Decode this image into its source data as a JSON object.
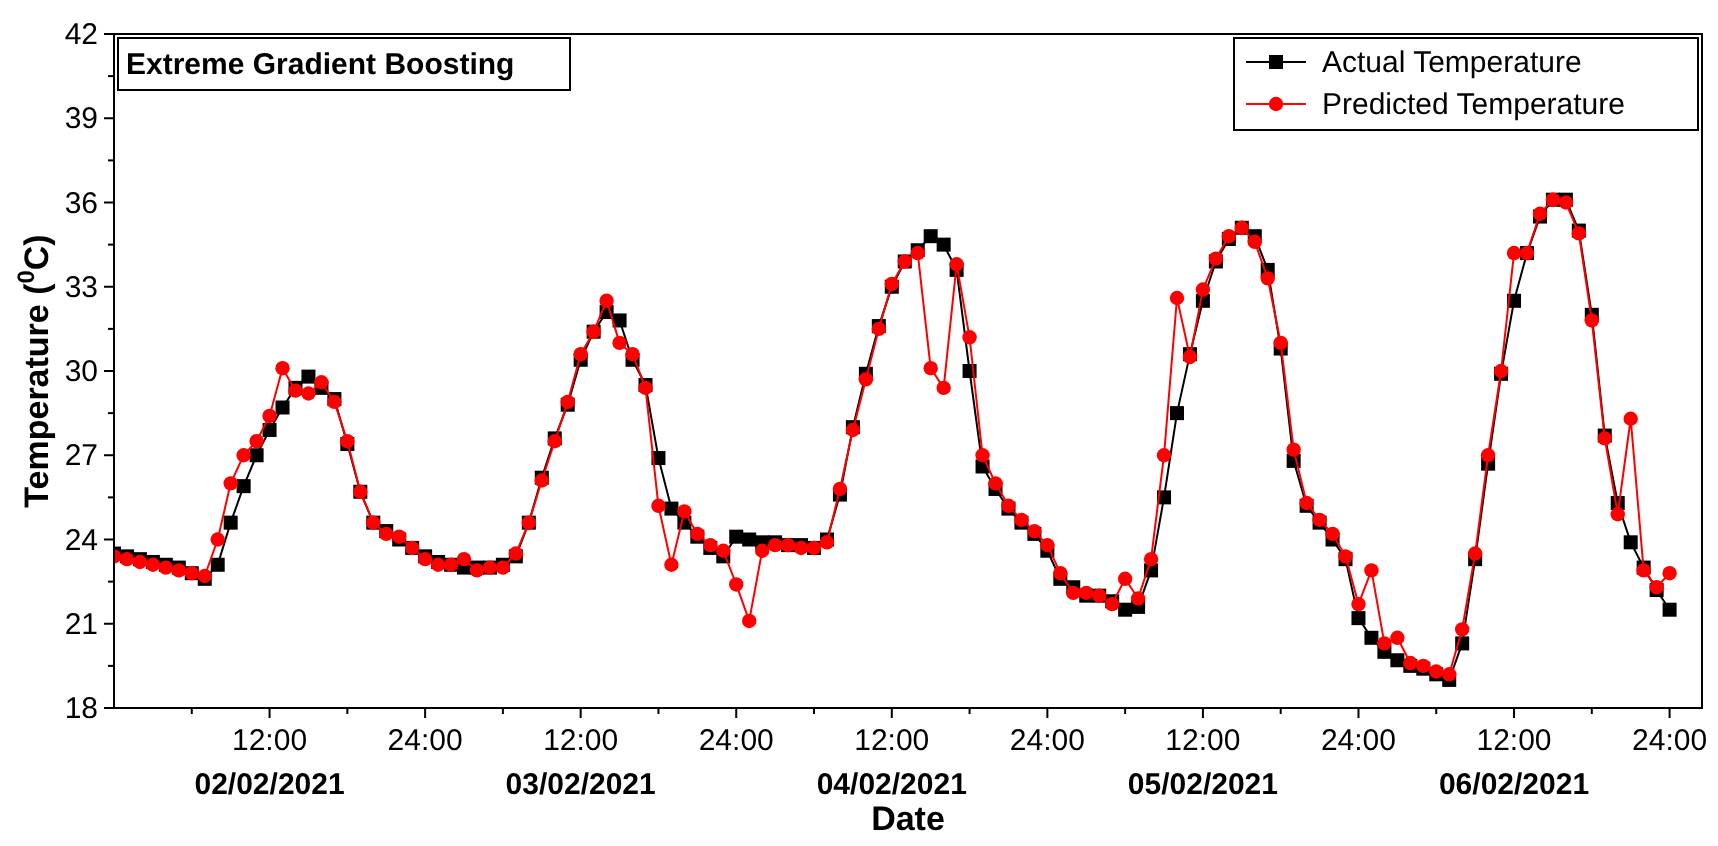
{
  "chart_data": {
    "type": "line",
    "title": "Extreme Gradient Boosting",
    "xlabel": "Date",
    "ylabel": "Temperature ($^{0}$C)",
    "x": [
      "2021-02-02T00:00",
      "2021-02-02T01:00",
      "2021-02-02T02:00",
      "2021-02-02T03:00",
      "2021-02-02T04:00",
      "2021-02-02T05:00",
      "2021-02-02T06:00",
      "2021-02-02T07:00",
      "2021-02-02T08:00",
      "2021-02-02T09:00",
      "2021-02-02T10:00",
      "2021-02-02T11:00",
      "2021-02-02T12:00",
      "2021-02-02T13:00",
      "2021-02-02T14:00",
      "2021-02-02T15:00",
      "2021-02-02T16:00",
      "2021-02-02T17:00",
      "2021-02-02T18:00",
      "2021-02-02T19:00",
      "2021-02-02T20:00",
      "2021-02-02T21:00",
      "2021-02-02T22:00",
      "2021-02-02T23:00",
      "2021-02-03T00:00",
      "2021-02-03T01:00",
      "2021-02-03T02:00",
      "2021-02-03T03:00",
      "2021-02-03T04:00",
      "2021-02-03T05:00",
      "2021-02-03T06:00",
      "2021-02-03T07:00",
      "2021-02-03T08:00",
      "2021-02-03T09:00",
      "2021-02-03T10:00",
      "2021-02-03T11:00",
      "2021-02-03T12:00",
      "2021-02-03T13:00",
      "2021-02-03T14:00",
      "2021-02-03T15:00",
      "2021-02-03T16:00",
      "2021-02-03T17:00",
      "2021-02-03T18:00",
      "2021-02-03T19:00",
      "2021-02-03T20:00",
      "2021-02-03T21:00",
      "2021-02-03T22:00",
      "2021-02-03T23:00",
      "2021-02-04T00:00",
      "2021-02-04T01:00",
      "2021-02-04T02:00",
      "2021-02-04T03:00",
      "2021-02-04T04:00",
      "2021-02-04T05:00",
      "2021-02-04T06:00",
      "2021-02-04T07:00",
      "2021-02-04T08:00",
      "2021-02-04T09:00",
      "2021-02-04T10:00",
      "2021-02-04T11:00",
      "2021-02-04T12:00",
      "2021-02-04T13:00",
      "2021-02-04T14:00",
      "2021-02-04T15:00",
      "2021-02-04T16:00",
      "2021-02-04T17:00",
      "2021-02-04T18:00",
      "2021-02-04T19:00",
      "2021-02-04T20:00",
      "2021-02-04T21:00",
      "2021-02-04T22:00",
      "2021-02-04T23:00",
      "2021-02-05T00:00",
      "2021-02-05T01:00",
      "2021-02-05T02:00",
      "2021-02-05T03:00",
      "2021-02-05T04:00",
      "2021-02-05T05:00",
      "2021-02-05T06:00",
      "2021-02-05T07:00",
      "2021-02-05T08:00",
      "2021-02-05T09:00",
      "2021-02-05T10:00",
      "2021-02-05T11:00",
      "2021-02-05T12:00",
      "2021-02-05T13:00",
      "2021-02-05T14:00",
      "2021-02-05T15:00",
      "2021-02-05T16:00",
      "2021-02-05T17:00",
      "2021-02-05T18:00",
      "2021-02-05T19:00",
      "2021-02-05T20:00",
      "2021-02-05T21:00",
      "2021-02-05T22:00",
      "2021-02-05T23:00",
      "2021-02-06T00:00",
      "2021-02-06T01:00",
      "2021-02-06T02:00",
      "2021-02-06T03:00",
      "2021-02-06T04:00",
      "2021-02-06T05:00",
      "2021-02-06T06:00",
      "2021-02-06T07:00",
      "2021-02-06T08:00",
      "2021-02-06T09:00",
      "2021-02-06T10:00",
      "2021-02-06T11:00",
      "2021-02-06T12:00",
      "2021-02-06T13:00",
      "2021-02-06T14:00",
      "2021-02-06T15:00",
      "2021-02-06T16:00",
      "2021-02-06T17:00",
      "2021-02-06T18:00",
      "2021-02-06T19:00",
      "2021-02-06T20:00",
      "2021-02-06T21:00",
      "2021-02-06T22:00",
      "2021-02-06T23:00",
      "2021-02-07T00:00"
    ],
    "series": [
      {
        "name": "Actual Temperature",
        "color": "#000000",
        "marker": "square",
        "values": [
          23.5,
          23.4,
          23.3,
          23.2,
          23.1,
          23.0,
          22.8,
          22.6,
          23.1,
          24.6,
          25.9,
          27.0,
          27.9,
          28.7,
          29.4,
          29.8,
          29.4,
          29.0,
          27.4,
          25.7,
          24.6,
          24.3,
          24.0,
          23.7,
          23.4,
          23.2,
          23.1,
          23.0,
          23.0,
          23.0,
          23.1,
          23.4,
          24.6,
          26.2,
          27.6,
          28.8,
          30.4,
          31.4,
          32.1,
          31.8,
          30.4,
          29.5,
          26.9,
          25.1,
          24.6,
          24.1,
          23.7,
          23.4,
          24.1,
          24.0,
          23.9,
          23.9,
          23.8,
          23.8,
          23.7,
          24.0,
          25.6,
          28.0,
          29.9,
          31.6,
          33.0,
          33.9,
          34.3,
          34.8,
          34.5,
          33.6,
          30.0,
          26.6,
          25.8,
          25.1,
          24.6,
          24.2,
          23.6,
          22.6,
          22.3,
          22.0,
          22.0,
          21.8,
          21.5,
          21.6,
          22.9,
          25.5,
          28.5,
          30.6,
          32.5,
          33.9,
          34.7,
          35.1,
          34.8,
          33.6,
          30.8,
          26.8,
          25.2,
          24.6,
          24.0,
          23.3,
          21.2,
          20.5,
          20.0,
          19.7,
          19.5,
          19.4,
          19.2,
          19.0,
          20.3,
          23.3,
          26.7,
          29.9,
          32.5,
          34.2,
          35.5,
          36.1,
          36.1,
          35.0,
          32.0,
          27.7,
          25.3,
          23.9,
          23.0,
          22.2,
          21.5
        ]
      },
      {
        "name": "Predicted Temperature",
        "color": "#ff0000",
        "marker": "circle",
        "values": [
          23.4,
          23.3,
          23.2,
          23.1,
          23.0,
          22.9,
          22.8,
          22.7,
          24.0,
          26.0,
          27.0,
          27.5,
          28.4,
          30.1,
          29.3,
          29.2,
          29.6,
          28.9,
          27.5,
          25.7,
          24.6,
          24.2,
          24.1,
          23.7,
          23.3,
          23.1,
          23.1,
          23.3,
          22.9,
          23.0,
          23.0,
          23.5,
          24.6,
          26.1,
          27.5,
          28.9,
          30.6,
          31.4,
          32.5,
          31.0,
          30.6,
          29.4,
          25.2,
          23.1,
          25.0,
          24.2,
          23.8,
          23.6,
          22.4,
          21.1,
          23.6,
          23.8,
          23.8,
          23.7,
          23.7,
          23.9,
          25.8,
          27.9,
          29.7,
          31.5,
          33.1,
          33.9,
          34.2,
          30.1,
          29.4,
          33.8,
          31.2,
          27.0,
          26.0,
          25.2,
          24.7,
          24.3,
          23.8,
          22.8,
          22.1,
          22.1,
          22.0,
          21.7,
          22.6,
          21.9,
          23.3,
          27.0,
          32.6,
          30.5,
          32.9,
          34.0,
          34.8,
          35.1,
          34.6,
          33.3,
          31.0,
          27.2,
          25.3,
          24.7,
          24.2,
          23.4,
          21.7,
          22.9,
          20.3,
          20.5,
          19.6,
          19.5,
          19.3,
          19.2,
          20.8,
          23.5,
          27.0,
          30.0,
          34.2,
          34.2,
          35.6,
          36.1,
          36.0,
          34.9,
          31.8,
          27.6,
          24.9,
          28.3,
          22.9,
          22.3,
          22.8
        ]
      }
    ],
    "xlim": [
      "2021-02-02T00:00",
      "2021-02-07T02:30"
    ],
    "xticks": [
      {
        "value": "2021-02-02T06:00",
        "label": null
      },
      {
        "value": "2021-02-02T12:00",
        "label": "12:00\n02/02/2021"
      },
      {
        "value": "2021-02-02T18:00",
        "label": null
      },
      {
        "value": "2021-02-03T00:00",
        "label": "24:00"
      },
      {
        "value": "2021-02-03T06:00",
        "label": null
      },
      {
        "value": "2021-02-03T12:00",
        "label": "12:00\n03/02/2021"
      },
      {
        "value": "2021-02-03T18:00",
        "label": null
      },
      {
        "value": "2021-02-04T00:00",
        "label": "24:00"
      },
      {
        "value": "2021-02-04T06:00",
        "label": null
      },
      {
        "value": "2021-02-04T12:00",
        "label": "12:00\n04/02/2021"
      },
      {
        "value": "2021-02-04T18:00",
        "label": null
      },
      {
        "value": "2021-02-05T00:00",
        "label": "24:00"
      },
      {
        "value": "2021-02-05T06:00",
        "label": null
      },
      {
        "value": "2021-02-05T12:00",
        "label": "12:00\n05/02/2021"
      },
      {
        "value": "2021-02-05T18:00",
        "label": null
      },
      {
        "value": "2021-02-06T00:00",
        "label": "24:00"
      },
      {
        "value": "2021-02-06T06:00",
        "label": null
      },
      {
        "value": "2021-02-06T12:00",
        "label": "12:00\n06/02/2021"
      },
      {
        "value": "2021-02-06T18:00",
        "label": null
      },
      {
        "value": "2021-02-07T00:00",
        "label": "24:00"
      }
    ],
    "ylim": [
      18,
      42
    ],
    "yticks": [
      18,
      {
        "value": 19.5,
        "label": null
      },
      21,
      {
        "value": 22.5,
        "label": null
      },
      24,
      {
        "value": 25.5,
        "label": null
      },
      27,
      {
        "value": 28.5,
        "label": null
      },
      30,
      {
        "value": 31.5,
        "label": null
      },
      33,
      {
        "value": 34.5,
        "label": null
      },
      36,
      {
        "value": 37.5,
        "label": null
      },
      39,
      {
        "value": 40.5,
        "label": null
      },
      42
    ],
    "legend": "top right",
    "grid": false
  }
}
